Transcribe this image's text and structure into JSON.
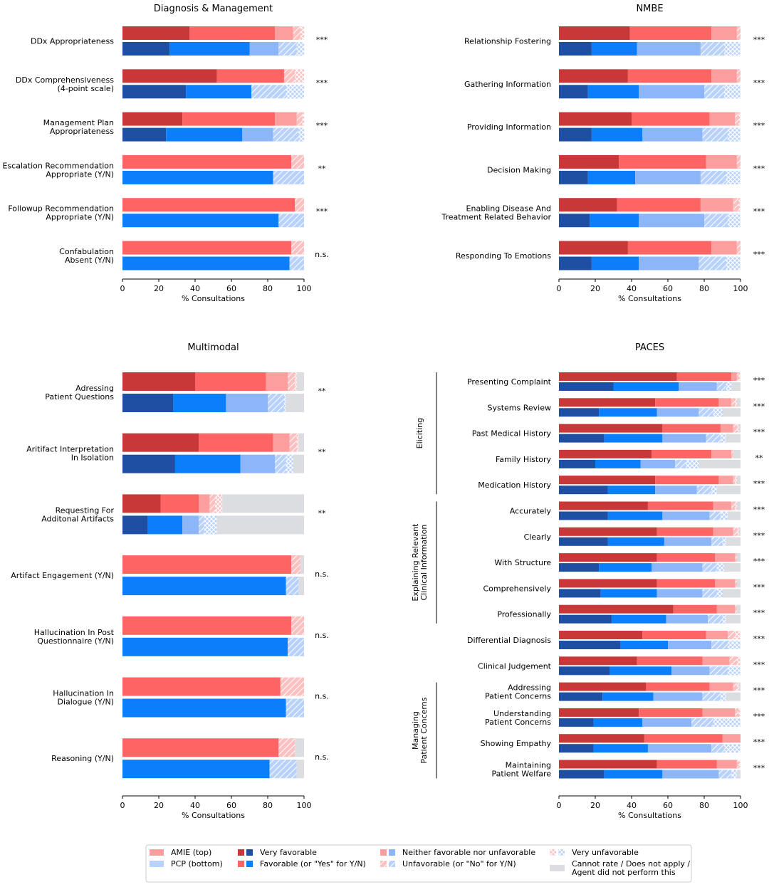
{
  "figure": {
    "xlabel": "% Consultations",
    "ticks": [
      0,
      20,
      40,
      60,
      80,
      100
    ],
    "colors": {
      "amie_very_fav": "#c93838",
      "amie_fav": "#fd6464",
      "amie_neither": "#fd9e9e",
      "amie_unfav": "#fcc0c0",
      "pcp_very_fav": "#1f4fa3",
      "pcp_fav": "#0b7efc",
      "pcp_neither": "#8db6f8",
      "pcp_unfav": "#b9d2fb",
      "na": "#dcdde0"
    }
  },
  "legend": {
    "amie_top": "AMIE (top)",
    "pcp_bottom": "PCP (bottom)",
    "very_favorable": "Very favorable",
    "favorable": "Favorable (or \"Yes\" for Y/N)",
    "neither": "Neither favorable nor unfavorable",
    "unfavorable": "Unfavorable (or \"No\" for Y/N)",
    "very_unfavorable": "Very unfavorable",
    "na_line1": "Cannot rate / Does not apply /",
    "na_line2": "Agent did not perform this"
  },
  "chart_data": [
    {
      "type": "bar",
      "title": "Diagnosis & Management",
      "xlabel": "% Consultations",
      "xlim": [
        0,
        100
      ],
      "segments": [
        "very_favorable",
        "favorable",
        "neither",
        "unfavorable",
        "very_unfavorable",
        "cannot_rate"
      ],
      "categories": [
        {
          "label": [
            "DDx Appropriateness"
          ],
          "sig": "***",
          "amie": [
            37,
            47,
            10,
            4,
            2,
            0
          ],
          "pcp": [
            26,
            44,
            16,
            10,
            4,
            0
          ]
        },
        {
          "label": [
            "DDx Comprehensiveness",
            "(4-point scale)"
          ],
          "sig": "***",
          "amie": [
            52,
            37,
            0,
            6,
            5,
            0
          ],
          "pcp": [
            35,
            36,
            0,
            19,
            10,
            0
          ]
        },
        {
          "label": [
            "Management Plan",
            "Appropriateness"
          ],
          "sig": "***",
          "amie": [
            33,
            51,
            12,
            3,
            1,
            0
          ],
          "pcp": [
            24,
            42,
            17,
            14,
            3,
            0
          ]
        },
        {
          "label": [
            "Escalation Recommendation",
            "Appropriate (Y/N)"
          ],
          "sig": "**",
          "amie": [
            0,
            93,
            0,
            7,
            0,
            0
          ],
          "pcp": [
            0,
            83,
            0,
            17,
            0,
            0
          ]
        },
        {
          "label": [
            "Followup Recommendation",
            "Appropriate (Y/N)"
          ],
          "sig": "***",
          "amie": [
            0,
            95,
            0,
            5,
            0,
            0
          ],
          "pcp": [
            0,
            86,
            0,
            14,
            0,
            0
          ]
        },
        {
          "label": [
            "Confabulation",
            "Absent (Y/N)"
          ],
          "sig": "n.s.",
          "amie": [
            0,
            93,
            0,
            7,
            0,
            0
          ],
          "pcp": [
            0,
            92,
            0,
            8,
            0,
            0
          ]
        }
      ]
    },
    {
      "type": "bar",
      "title": "NMBE",
      "xlabel": "% Consultations",
      "xlim": [
        0,
        100
      ],
      "segments": [
        "very_favorable",
        "favorable",
        "neither",
        "unfavorable",
        "very_unfavorable",
        "cannot_rate"
      ],
      "categories": [
        {
          "label": [
            "Relationship Fostering"
          ],
          "sig": "***",
          "amie": [
            39,
            45,
            14,
            2,
            0,
            0
          ],
          "pcp": [
            18,
            25,
            35,
            13,
            9,
            0
          ]
        },
        {
          "label": [
            "Gathering Information"
          ],
          "sig": "***",
          "amie": [
            38,
            46,
            14,
            2,
            0,
            0
          ],
          "pcp": [
            16,
            28,
            36,
            11,
            9,
            0
          ]
        },
        {
          "label": [
            "Providing Information"
          ],
          "sig": "***",
          "amie": [
            40,
            43,
            14,
            2,
            1,
            0
          ],
          "pcp": [
            18,
            28,
            33,
            14,
            7,
            0
          ]
        },
        {
          "label": [
            "Decision Making"
          ],
          "sig": "***",
          "amie": [
            33,
            48,
            17,
            2,
            0,
            0
          ],
          "pcp": [
            16,
            26,
            36,
            14,
            8,
            0
          ]
        },
        {
          "label": [
            "Enabling Disease And",
            "Treatment Related Behavior"
          ],
          "sig": "***",
          "amie": [
            32,
            46,
            18,
            3,
            1,
            0
          ],
          "pcp": [
            17,
            27,
            36,
            13,
            7,
            0
          ]
        },
        {
          "label": [
            "Responding To Emotions"
          ],
          "sig": "***",
          "amie": [
            38,
            46,
            14,
            2,
            0,
            0
          ],
          "pcp": [
            18,
            26,
            33,
            15,
            8,
            0
          ]
        }
      ]
    },
    {
      "type": "bar",
      "title": "Multimodal",
      "xlabel": "% Consultations",
      "xlim": [
        0,
        100
      ],
      "segments": [
        "very_favorable",
        "favorable",
        "neither",
        "unfavorable",
        "very_unfavorable",
        "cannot_rate"
      ],
      "categories": [
        {
          "label": [
            "Adressing",
            "Patient Questions"
          ],
          "sig": "**",
          "amie": [
            40,
            39,
            12,
            4,
            1,
            4
          ],
          "pcp": [
            28,
            29,
            23,
            9,
            1,
            10
          ]
        },
        {
          "label": [
            "Aritifact Interpretation",
            "In Isolation"
          ],
          "sig": "**",
          "amie": [
            42,
            41,
            9,
            4,
            1,
            3
          ],
          "pcp": [
            29,
            36,
            19,
            6,
            4,
            6
          ]
        },
        {
          "label": [
            "Requesting For",
            "Additonal Artifacts"
          ],
          "sig": "**",
          "amie": [
            21,
            21,
            6,
            3,
            4,
            45
          ],
          "pcp": [
            14,
            19,
            9,
            3,
            7,
            48
          ]
        },
        {
          "label": [
            "Artifact Engagement (Y/N)"
          ],
          "sig": "n.s.",
          "amie": [
            0,
            93,
            0,
            5,
            0,
            2
          ],
          "pcp": [
            0,
            90,
            0,
            7,
            0,
            3
          ]
        },
        {
          "label": [
            "Hallucination In Post",
            "Questionnaire (Y/N)"
          ],
          "sig": "n.s.",
          "amie": [
            0,
            93,
            0,
            7,
            0,
            0
          ],
          "pcp": [
            0,
            91,
            0,
            9,
            0,
            0
          ]
        },
        {
          "label": [
            "Hallucination In",
            "Dialogue (Y/N)"
          ],
          "sig": "n.s.",
          "amie": [
            0,
            87,
            0,
            13,
            0,
            0
          ],
          "pcp": [
            0,
            90,
            0,
            10,
            0,
            0
          ]
        },
        {
          "label": [
            "Reasoning (Y/N)"
          ],
          "sig": "n.s.",
          "amie": [
            0,
            86,
            0,
            9,
            0,
            5
          ],
          "pcp": [
            0,
            81,
            0,
            15,
            0,
            4
          ]
        }
      ]
    },
    {
      "type": "bar",
      "title": "PACES",
      "xlabel": "% Consultations",
      "xlim": [
        0,
        100
      ],
      "segments": [
        "very_favorable",
        "favorable",
        "neither",
        "unfavorable",
        "very_unfavorable",
        "cannot_rate"
      ],
      "groups": [
        {
          "label": [
            "Eliciting"
          ],
          "first": 0,
          "last": 4
        },
        {
          "label": [
            "Explaining Relevant",
            "Clinical Information"
          ],
          "first": 5,
          "last": 9
        },
        {
          "label": [
            "Managing",
            "Patient Concerns"
          ],
          "first": 12,
          "last": 15
        }
      ],
      "categories": [
        {
          "label": [
            "Presenting Complaint"
          ],
          "sig": "***",
          "amie": [
            65,
            30,
            3,
            1,
            1,
            0
          ],
          "pcp": [
            30,
            36,
            21,
            5,
            3,
            5
          ]
        },
        {
          "label": [
            "Systems Review"
          ],
          "sig": "***",
          "amie": [
            53,
            35,
            7,
            2,
            1,
            2
          ],
          "pcp": [
            22,
            32,
            23,
            8,
            5,
            10
          ]
        },
        {
          "label": [
            "Past Medical History"
          ],
          "sig": "***",
          "amie": [
            57,
            32,
            7,
            2,
            1,
            1
          ],
          "pcp": [
            25,
            32,
            24,
            8,
            3,
            8
          ]
        },
        {
          "label": [
            "Family History"
          ],
          "sig": "**",
          "amie": [
            51,
            33,
            11,
            1,
            0,
            4
          ],
          "pcp": [
            20,
            25,
            19,
            6,
            7,
            23
          ]
        },
        {
          "label": [
            "Medication History"
          ],
          "sig": "***",
          "amie": [
            53,
            35,
            8,
            1,
            1,
            2
          ],
          "pcp": [
            27,
            26,
            23,
            8,
            3,
            13
          ]
        },
        {
          "label": [
            "Accurately"
          ],
          "sig": "***",
          "amie": [
            49,
            36,
            10,
            2,
            1,
            2
          ],
          "pcp": [
            27,
            30,
            26,
            6,
            4,
            7
          ]
        },
        {
          "label": [
            "Clearly"
          ],
          "sig": "***",
          "amie": [
            54,
            31,
            11,
            2,
            1,
            1
          ],
          "pcp": [
            27,
            31,
            26,
            6,
            2,
            8
          ]
        },
        {
          "label": [
            "With Structure"
          ],
          "sig": "***",
          "amie": [
            54,
            32,
            11,
            1,
            0,
            2
          ],
          "pcp": [
            22,
            29,
            28,
            8,
            4,
            9
          ]
        },
        {
          "label": [
            "Comprehensively"
          ],
          "sig": "***",
          "amie": [
            54,
            32,
            11,
            1,
            0,
            2
          ],
          "pcp": [
            23,
            31,
            25,
            8,
            3,
            10
          ]
        },
        {
          "label": [
            "Professionally"
          ],
          "sig": "***",
          "amie": [
            63,
            24,
            10,
            1,
            0,
            2
          ],
          "pcp": [
            29,
            30,
            23,
            8,
            2,
            8
          ]
        },
        {
          "label": [
            "Differential Diagnosis"
          ],
          "sig": "***",
          "amie": [
            46,
            35,
            12,
            4,
            3,
            0
          ],
          "pcp": [
            34,
            26,
            24,
            9,
            7,
            0
          ]
        },
        {
          "label": [
            "Clinical Judgement"
          ],
          "sig": "***",
          "amie": [
            43,
            36,
            15,
            4,
            2,
            0
          ],
          "pcp": [
            28,
            34,
            21,
            10,
            7,
            0
          ]
        },
        {
          "label": [
            "Addressing",
            "Patient Concerns"
          ],
          "sig": "***",
          "amie": [
            48,
            35,
            13,
            2,
            1,
            1
          ],
          "pcp": [
            24,
            28,
            27,
            10,
            3,
            8
          ]
        },
        {
          "label": [
            "Understanding",
            "Patient Concerns"
          ],
          "sig": "***",
          "amie": [
            44,
            35,
            18,
            2,
            1,
            0
          ],
          "pcp": [
            19,
            27,
            27,
            12,
            15,
            0
          ]
        },
        {
          "label": [
            "Showing Empathy"
          ],
          "sig": "***",
          "amie": [
            47,
            43,
            10,
            0,
            0,
            0
          ],
          "pcp": [
            19,
            30,
            35,
            7,
            9,
            0
          ]
        },
        {
          "label": [
            "Maintaining",
            "Patient Welfare"
          ],
          "sig": "***",
          "amie": [
            54,
            33,
            11,
            1,
            1,
            0
          ],
          "pcp": [
            25,
            32,
            31,
            7,
            3,
            2
          ]
        }
      ]
    }
  ]
}
